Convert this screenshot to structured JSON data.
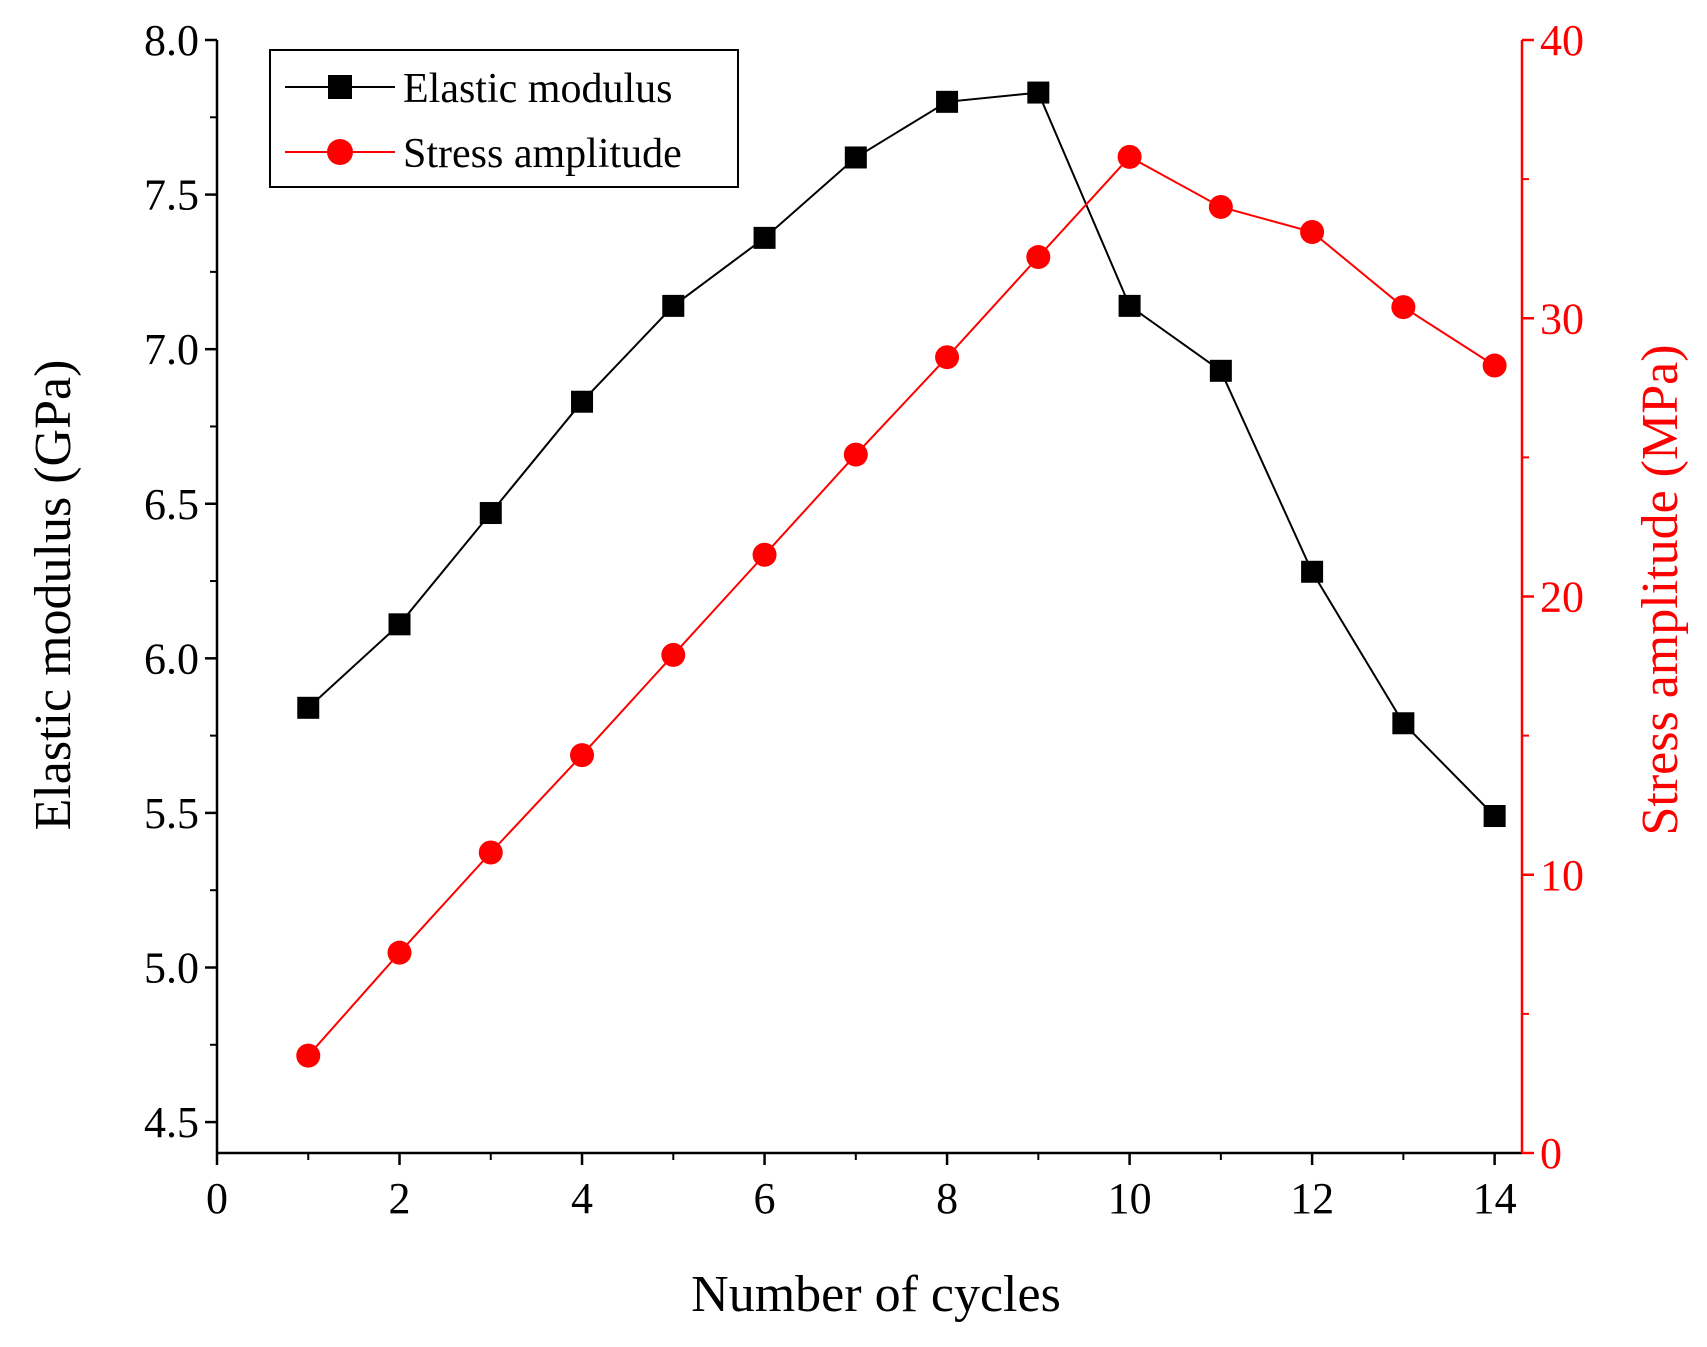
{
  "chart_data": {
    "type": "line",
    "title": "",
    "xlabel": "Number of cycles",
    "xlim": [
      0,
      14.3
    ],
    "xticks": [
      0,
      2,
      4,
      6,
      8,
      10,
      12,
      14
    ],
    "x": [
      1,
      2,
      3,
      4,
      5,
      6,
      7,
      8,
      9,
      10,
      11,
      12,
      13,
      14
    ],
    "y_left": {
      "label": "Elastic modulus (GPa)",
      "lim": [
        4.4,
        8.0
      ],
      "ticks": [
        "4.5",
        "5.0",
        "5.5",
        "6.0",
        "6.5",
        "7.0",
        "7.5",
        "8.0"
      ]
    },
    "y_right": {
      "label": "Stress amplitude (MPa)",
      "lim": [
        0,
        40
      ],
      "ticks": [
        "0",
        "10",
        "20",
        "30",
        "40"
      ]
    },
    "series": [
      {
        "name": "Elastic modulus",
        "axis": "left",
        "marker": "square",
        "color": "#000000",
        "values": [
          5.84,
          6.11,
          6.47,
          6.83,
          7.14,
          7.36,
          7.62,
          7.8,
          7.83,
          7.14,
          6.93,
          6.28,
          5.79,
          5.49
        ]
      },
      {
        "name": "Stress amplitude",
        "axis": "right",
        "marker": "circle",
        "color": "#ff0000",
        "values": [
          3.5,
          7.2,
          10.8,
          14.3,
          17.9,
          21.5,
          25.1,
          28.6,
          32.2,
          35.8,
          34.0,
          33.1,
          30.4,
          28.3
        ]
      }
    ],
    "legend_position": "top-left",
    "grid": false
  }
}
